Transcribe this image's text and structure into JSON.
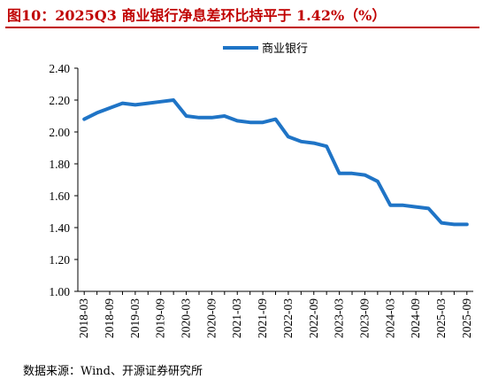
{
  "title": "图10：2025Q3 商业银行净息差环比持平于 1.42%（%）",
  "source": "数据来源：Wind、开源证券研究所",
  "colors": {
    "title": "#c00000",
    "line": "#1f74c6",
    "axis": "#000000"
  },
  "chart_data": {
    "type": "line",
    "title": "",
    "xlabel": "",
    "ylabel": "",
    "ylim": [
      1.0,
      2.4
    ],
    "yticks": [
      "1.00",
      "1.20",
      "1.40",
      "1.60",
      "1.80",
      "2.00",
      "2.20",
      "2.40"
    ],
    "grid": false,
    "legend_position": "top-center",
    "x": [
      "2018-03",
      "2018-06",
      "2018-09",
      "2018-12",
      "2019-03",
      "2019-06",
      "2019-09",
      "2019-12",
      "2020-03",
      "2020-06",
      "2020-09",
      "2020-12",
      "2021-03",
      "2021-06",
      "2021-09",
      "2021-12",
      "2022-03",
      "2022-06",
      "2022-09",
      "2022-12",
      "2023-03",
      "2023-06",
      "2023-09",
      "2023-12",
      "2024-03",
      "2024-06",
      "2024-09",
      "2024-12",
      "2025-03",
      "2025-06",
      "2025-09"
    ],
    "xtick_labels": [
      "2018-03",
      "2018-09",
      "2019-03",
      "2019-09",
      "2020-03",
      "2020-09",
      "2021-03",
      "2021-09",
      "2022-03",
      "2022-09",
      "2023-03",
      "2023-09",
      "2024-03",
      "2024-09",
      "2025-03",
      "2025-09"
    ],
    "series": [
      {
        "name": "商业银行",
        "values": [
          2.08,
          2.12,
          2.15,
          2.18,
          2.17,
          2.18,
          2.19,
          2.2,
          2.1,
          2.09,
          2.09,
          2.1,
          2.07,
          2.06,
          2.06,
          2.08,
          1.97,
          1.94,
          1.93,
          1.91,
          1.74,
          1.74,
          1.73,
          1.69,
          1.54,
          1.54,
          1.53,
          1.52,
          1.43,
          1.42,
          1.42
        ]
      }
    ]
  }
}
